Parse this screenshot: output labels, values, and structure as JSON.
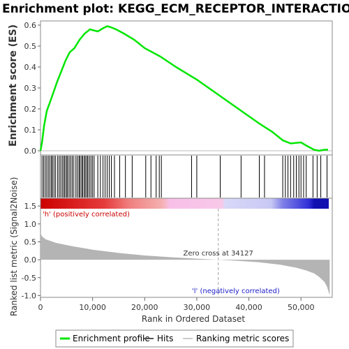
{
  "title": "Enrichment plot: KEGG_ECM_RECEPTOR_INTERACTION",
  "chart_data": {
    "type": "line",
    "title": "Enrichment plot: KEGG_ECM_RECEPTOR_INTERACTION",
    "xlabel": "Rank in Ordered Dataset",
    "ylabel_es": "Enrichment score (ES)",
    "ylabel_metric": "Ranked list metric (Signal2Noise)",
    "xlim": [
      0,
      56000
    ],
    "x_ticks": [
      0,
      10000,
      20000,
      30000,
      40000,
      50000
    ],
    "x_tick_labels": [
      "0",
      "10,000",
      "20,000",
      "30,000",
      "40,000",
      "50,000"
    ],
    "es_ylim": [
      -0.02,
      0.62
    ],
    "es_ticks": [
      0.0,
      0.1,
      0.2,
      0.3,
      0.4,
      0.5,
      0.6
    ],
    "es_tick_labels": [
      "0.0",
      "0.1",
      "0.2",
      "0.3",
      "0.4",
      "0.5",
      "0.6"
    ],
    "metric_ylim": [
      -1.05,
      1.6
    ],
    "metric_ticks": [
      -1.0,
      -0.5,
      0.0,
      0.5,
      1.0,
      1.5
    ],
    "metric_tick_labels": [
      "-1.0",
      "-0.5",
      "0.0",
      "0.5",
      "1.0",
      "1.5"
    ],
    "enrichment_profile": {
      "name": "Enrichment profile",
      "color": "#00e600",
      "x": [
        0,
        300,
        700,
        1200,
        1800,
        2500,
        3200,
        4000,
        4800,
        5600,
        6500,
        7500,
        8500,
        9500,
        10200,
        11000,
        12000,
        12800,
        13500,
        14500,
        16000,
        18000,
        20000,
        23000,
        26000,
        30000,
        34000,
        38000,
        42000,
        44500,
        46500,
        48000,
        50000,
        51000,
        52500,
        53500,
        54500,
        55200
      ],
      "y": [
        0.0,
        0.04,
        0.12,
        0.19,
        0.23,
        0.28,
        0.33,
        0.38,
        0.43,
        0.47,
        0.49,
        0.53,
        0.56,
        0.58,
        0.575,
        0.57,
        0.585,
        0.595,
        0.59,
        0.58,
        0.56,
        0.53,
        0.49,
        0.45,
        0.4,
        0.34,
        0.27,
        0.2,
        0.13,
        0.09,
        0.05,
        0.035,
        0.04,
        0.025,
        0.005,
        0.0,
        0.005,
        0.005
      ]
    },
    "hits": {
      "name": "Hits",
      "x": [
        300,
        600,
        900,
        1200,
        1500,
        1800,
        2100,
        2300,
        2600,
        2900,
        3300,
        3600,
        3900,
        4200,
        4500,
        4700,
        5000,
        5200,
        5500,
        5800,
        6100,
        6400,
        6800,
        7100,
        7400,
        7600,
        7900,
        8100,
        8400,
        8600,
        8900,
        9100,
        9400,
        9700,
        10000,
        10300,
        11000,
        11500,
        12000,
        12400,
        12800,
        13200,
        13600,
        14200,
        15200,
        16300,
        17600,
        20200,
        21200,
        22200,
        22800,
        23200,
        29000,
        30000,
        34500,
        38500,
        42000,
        43000,
        46500,
        47000,
        47500,
        48000,
        48600,
        49100,
        49600,
        50000,
        50500,
        51000,
        52300,
        53100,
        53800,
        55000
      ]
    },
    "metric": {
      "name": "Ranking metric scores",
      "x": [
        0,
        300,
        1000,
        3000,
        6000,
        10000,
        15000,
        20000,
        25000,
        30000,
        34127,
        38000,
        42000,
        46000,
        49000,
        51000,
        52500,
        53500,
        54500,
        55000,
        55300,
        55500
      ],
      "y": [
        0.75,
        0.65,
        0.57,
        0.47,
        0.38,
        0.28,
        0.19,
        0.12,
        0.07,
        0.03,
        0.0,
        -0.03,
        -0.07,
        -0.14,
        -0.22,
        -0.3,
        -0.38,
        -0.48,
        -0.62,
        -0.75,
        -0.9,
        -0.98
      ]
    },
    "zero_cross_label": "Zero cross at 34127",
    "pos_label": "'h' (positively correlated)",
    "neg_label": "'l' (negatively correlated)",
    "legend": [
      "Enrichment profile",
      "Hits",
      "Ranking metric scores"
    ],
    "colors": {
      "enrichment": "#00e600",
      "hits": "#000000",
      "metric": "#b4b4b4",
      "zero_line": "#a0a0a0",
      "pos_text": "#cc0000",
      "neg_text": "#2020cc"
    }
  }
}
